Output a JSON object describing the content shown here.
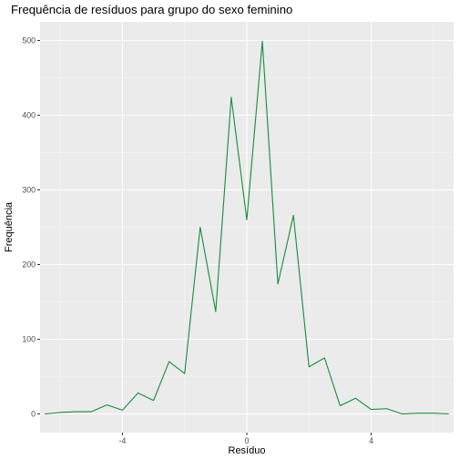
{
  "chart_data": {
    "type": "line",
    "title": "Frequência de resíduos para grupo do sexo feminino",
    "xlabel": "Resíduo",
    "ylabel": "Frequência",
    "xlim": [
      -6.65,
      6.65
    ],
    "ylim": [
      -25,
      525
    ],
    "x_ticks": [
      -4,
      0,
      4
    ],
    "x_tick_labels": [
      "-4",
      "0",
      "4"
    ],
    "y_ticks": [
      0,
      100,
      200,
      300,
      400,
      500
    ],
    "y_tick_labels": [
      "0",
      "100",
      "200",
      "300",
      "400",
      "500"
    ],
    "grid": true,
    "legend": "none",
    "series": [
      {
        "color": "#1a8a3d",
        "x": [
          -6.5,
          -6.0,
          -5.5,
          -5.0,
          -4.5,
          -4.0,
          -3.5,
          -3.0,
          -2.5,
          -2.0,
          -1.5,
          -1.0,
          -0.5,
          0.0,
          0.5,
          1.0,
          1.5,
          2.0,
          2.5,
          3.0,
          3.5,
          4.0,
          4.5,
          5.0,
          5.5,
          6.0,
          6.5
        ],
        "y": [
          0,
          2,
          3,
          3,
          12,
          5,
          28,
          18,
          70,
          54,
          250,
          137,
          424,
          260,
          499,
          174,
          266,
          63,
          75,
          11,
          21,
          6,
          7,
          0,
          1,
          1,
          0
        ]
      }
    ]
  }
}
